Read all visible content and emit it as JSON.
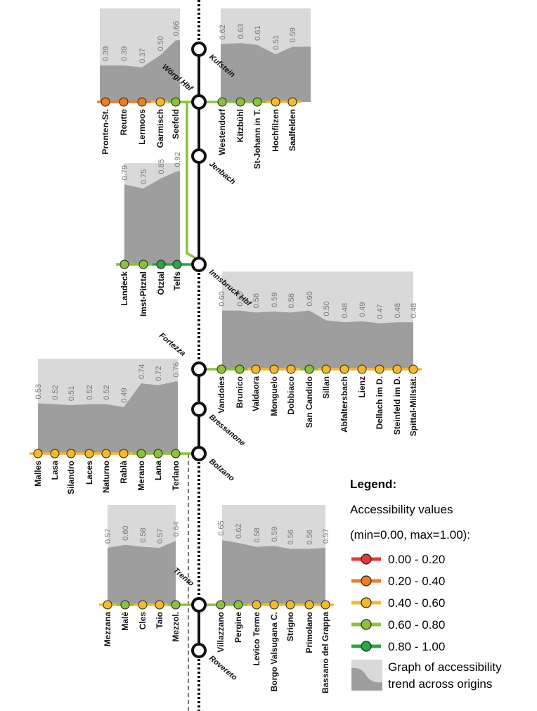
{
  "legend": {
    "title": "Legend:",
    "line1": "Accessibility values",
    "line2": "(min=0.00, max=1.00):",
    "classes": [
      {
        "range": "0.00 - 0.20",
        "color": "#e53935"
      },
      {
        "range": "0.20 - 0.40",
        "color": "#ef7d22"
      },
      {
        "range": "0.40 - 0.60",
        "color": "#f6b92b"
      },
      {
        "range": "0.60 - 0.80",
        "color": "#8bc13d"
      },
      {
        "range": "0.80 - 1.00",
        "color": "#2aa744"
      }
    ],
    "graph_line1": "Graph of accessibility",
    "graph_line2": "trend across origins"
  },
  "main_stations": [
    {
      "name": "Kufstein"
    },
    {
      "name": "Wörgl Hbf"
    },
    {
      "name": "Jenbach"
    },
    {
      "name": "Innsbruck Hbf"
    },
    {
      "name": "Fortezza"
    },
    {
      "name": "Bressanone"
    },
    {
      "name": "Bolzano"
    },
    {
      "name": "Trento"
    },
    {
      "name": "Rovereto"
    }
  ],
  "branches": [
    {
      "id": "ausserfern",
      "stations": [
        {
          "name": "Pronten-St.",
          "value": 0.39,
          "color": "#ef7d22"
        },
        {
          "name": "Reutte",
          "value": 0.39,
          "color": "#ef7d22"
        },
        {
          "name": "Lermoos",
          "value": 0.37,
          "color": "#ef7d22"
        },
        {
          "name": "Garmisch",
          "value": 0.5,
          "color": "#f6b92b"
        },
        {
          "name": "Seefeld",
          "value": 0.66,
          "color": "#8bc13d"
        }
      ]
    },
    {
      "id": "unterinntal",
      "stations": [
        {
          "name": "Westendorf",
          "value": 0.62,
          "color": "#8bc13d"
        },
        {
          "name": "Kitzbühl",
          "value": 0.63,
          "color": "#8bc13d"
        },
        {
          "name": "St-Johann in T.",
          "value": 0.61,
          "color": "#8bc13d"
        },
        {
          "name": "Hochfilzen",
          "value": 0.51,
          "color": "#f6b92b"
        },
        {
          "name": "Saalfelden",
          "value": 0.59,
          "color": "#f6b92b"
        }
      ]
    },
    {
      "id": "oberinntal",
      "stations": [
        {
          "name": "Landeck",
          "value": 0.79,
          "color": "#8bc13d"
        },
        {
          "name": "Imst-Pitztal",
          "value": 0.75,
          "color": "#8bc13d"
        },
        {
          "name": "Ötztal",
          "value": 0.85,
          "color": "#2aa744"
        },
        {
          "name": "Telfs",
          "value": 0.92,
          "color": "#2aa744"
        }
      ]
    },
    {
      "id": "pustertal",
      "stations": [
        {
          "name": "Vandoies",
          "value": 0.6,
          "color": "#8bc13d"
        },
        {
          "name": "Brunico",
          "value": 0.6,
          "color": "#8bc13d"
        },
        {
          "name": "Valdaora",
          "value": 0.58,
          "color": "#f6b92b"
        },
        {
          "name": "Monguelo",
          "value": 0.59,
          "color": "#f6b92b"
        },
        {
          "name": "Dobbiaco",
          "value": 0.58,
          "color": "#f6b92b"
        },
        {
          "name": "San Candido",
          "value": 0.6,
          "color": "#8bc13d"
        },
        {
          "name": "Sillan",
          "value": 0.5,
          "color": "#f6b92b"
        },
        {
          "name": "Abfaltersbach",
          "value": 0.48,
          "color": "#f6b92b"
        },
        {
          "name": "Lienz",
          "value": 0.49,
          "color": "#f6b92b"
        },
        {
          "name": "Dellach im D.",
          "value": 0.47,
          "color": "#f6b92b"
        },
        {
          "name": "Steinfeld im D.",
          "value": 0.48,
          "color": "#f6b92b"
        },
        {
          "name": "Spittal-Millstät.",
          "value": 0.48,
          "color": "#f6b92b"
        }
      ]
    },
    {
      "id": "vinschgau",
      "stations": [
        {
          "name": "Malles",
          "value": 0.53,
          "color": "#f6b92b"
        },
        {
          "name": "Lasa",
          "value": 0.52,
          "color": "#f6b92b"
        },
        {
          "name": "Silandro",
          "value": 0.51,
          "color": "#f6b92b"
        },
        {
          "name": "Laces",
          "value": 0.52,
          "color": "#f6b92b"
        },
        {
          "name": "Naturno",
          "value": 0.52,
          "color": "#f6b92b"
        },
        {
          "name": "Rablà",
          "value": 0.49,
          "color": "#f6b92b"
        },
        {
          "name": "Merano",
          "value": 0.74,
          "color": "#8bc13d"
        },
        {
          "name": "Lana",
          "value": 0.72,
          "color": "#8bc13d"
        },
        {
          "name": "Terlano",
          "value": 0.76,
          "color": "#8bc13d"
        }
      ]
    },
    {
      "id": "valdisole",
      "stations": [
        {
          "name": "Mezzana",
          "value": 0.57,
          "color": "#f6b92b"
        },
        {
          "name": "Malè",
          "value": 0.6,
          "color": "#8bc13d"
        },
        {
          "name": "Cles",
          "value": 0.58,
          "color": "#f6b92b"
        },
        {
          "name": "Taio",
          "value": 0.57,
          "color": "#f6b92b"
        },
        {
          "name": "Mezzol.",
          "value": 0.64,
          "color": "#8bc13d"
        }
      ]
    },
    {
      "id": "valsugana",
      "stations": [
        {
          "name": "Villazzano",
          "value": 0.65,
          "color": "#8bc13d"
        },
        {
          "name": "Pergine",
          "value": 0.62,
          "color": "#8bc13d"
        },
        {
          "name": "Levico Terme",
          "value": 0.58,
          "color": "#f6b92b"
        },
        {
          "name": "Borgo Valsugana C.",
          "value": 0.59,
          "color": "#f6b92b"
        },
        {
          "name": "Strigno",
          "value": 0.56,
          "color": "#f6b92b"
        },
        {
          "name": "Primolano",
          "value": 0.56,
          "color": "#f6b92b"
        },
        {
          "name": "Bassano del Grappa",
          "value": 0.57,
          "color": "#f6b92b"
        }
      ]
    }
  ]
}
